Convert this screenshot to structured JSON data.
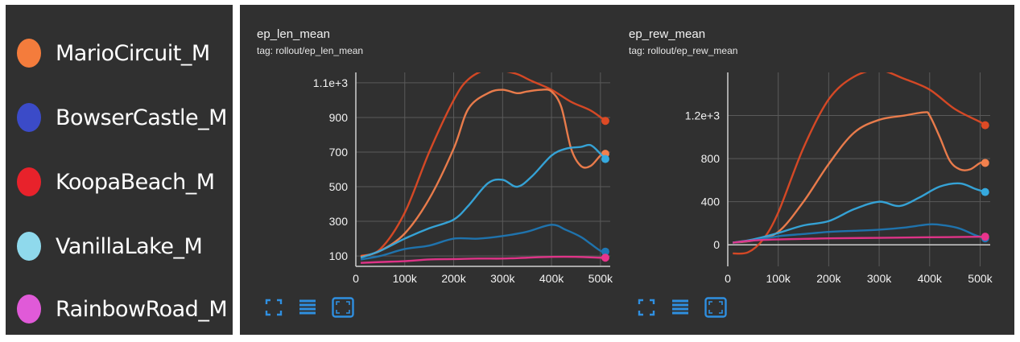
{
  "legend": [
    {
      "label": "MarioCircuit_M",
      "color": "#f47c3c"
    },
    {
      "label": "BowserCastle_M",
      "color": "#3b4bc8"
    },
    {
      "label": "KoopaBeach_M",
      "color": "#e8222b"
    },
    {
      "label": "VanillaLake_M",
      "color": "#8fd9ec"
    },
    {
      "label": "RainbowRoad_M",
      "color": "#e05ad8"
    }
  ],
  "controls": {
    "fullscreen_icon": "fullscreen-icon",
    "list_icon": "list-icon",
    "fit_icon": "fit-domain-icon"
  },
  "chart_data": [
    {
      "type": "line",
      "title": "ep_len_mean",
      "subtitle": "tag: rollout/ep_len_mean",
      "xlim": [
        0,
        520000
      ],
      "ylim": [
        40,
        1160
      ],
      "xticks": [
        0,
        100000,
        200000,
        300000,
        400000,
        500000
      ],
      "xtick_labels": [
        "0",
        "100k",
        "200k",
        "300k",
        "400k",
        "500k"
      ],
      "yticks": [
        100,
        300,
        500,
        700,
        900,
        1100
      ],
      "ytick_labels": [
        "100",
        "300",
        "500",
        "700",
        "900",
        "1.1e+3"
      ],
      "grid": true,
      "series": [
        {
          "name": "KoopaBeach_M",
          "color": "#dd4a25",
          "x": [
            10000,
            50000,
            100000,
            150000,
            200000,
            230000,
            270000,
            300000,
            330000,
            360000,
            400000,
            440000,
            480000,
            510000
          ],
          "y": [
            100,
            140,
            350,
            700,
            1000,
            1120,
            1180,
            1170,
            1150,
            1110,
            1060,
            990,
            940,
            880
          ]
        },
        {
          "name": "MarioCircuit_M",
          "color": "#f2804d",
          "x": [
            10000,
            50000,
            100000,
            150000,
            200000,
            230000,
            270000,
            300000,
            330000,
            350000,
            380000,
            400000,
            420000,
            440000,
            460000,
            480000,
            500000,
            510000
          ],
          "y": [
            95,
            130,
            230,
            430,
            720,
            950,
            1040,
            1060,
            1040,
            1050,
            1060,
            1050,
            960,
            720,
            620,
            620,
            680,
            690
          ]
        },
        {
          "name": "VanillaLake_M",
          "color": "#36a9de",
          "x": [
            10000,
            50000,
            100000,
            150000,
            200000,
            230000,
            270000,
            300000,
            330000,
            360000,
            400000,
            430000,
            460000,
            480000,
            500000,
            510000
          ],
          "y": [
            90,
            130,
            200,
            260,
            310,
            390,
            520,
            540,
            500,
            560,
            680,
            720,
            730,
            740,
            690,
            660
          ]
        },
        {
          "name": "BowserCastle_M",
          "color": "#1f77b4",
          "x": [
            10000,
            50000,
            100000,
            150000,
            200000,
            250000,
            300000,
            350000,
            400000,
            430000,
            460000,
            480000,
            500000,
            510000
          ],
          "y": [
            80,
            100,
            140,
            160,
            200,
            200,
            215,
            240,
            280,
            250,
            210,
            170,
            130,
            125
          ]
        },
        {
          "name": "RainbowRoad_M",
          "color": "#e8348c",
          "x": [
            10000,
            50000,
            100000,
            150000,
            200000,
            250000,
            300000,
            350000,
            400000,
            450000,
            500000,
            510000
          ],
          "y": [
            60,
            65,
            70,
            80,
            82,
            85,
            85,
            90,
            95,
            95,
            90,
            90
          ]
        }
      ]
    },
    {
      "type": "line",
      "title": "ep_rew_mean",
      "subtitle": "tag: rollout/ep_rew_mean",
      "xlim": [
        0,
        520000
      ],
      "ylim": [
        -200,
        1600
      ],
      "xticks": [
        0,
        100000,
        200000,
        300000,
        400000,
        500000
      ],
      "xtick_labels": [
        "0",
        "100k",
        "200k",
        "300k",
        "400k",
        "500k"
      ],
      "yticks": [
        0,
        400,
        800,
        1200
      ],
      "ytick_labels": [
        "0",
        "400",
        "800",
        "1.2e+3"
      ],
      "grid": true,
      "series": [
        {
          "name": "KoopaBeach_M",
          "color": "#dd4a25",
          "x": [
            10000,
            40000,
            70000,
            100000,
            150000,
            200000,
            250000,
            300000,
            350000,
            400000,
            450000,
            500000,
            510000
          ],
          "y": [
            -80,
            -70,
            50,
            300,
            900,
            1350,
            1560,
            1620,
            1540,
            1440,
            1260,
            1140,
            1110
          ]
        },
        {
          "name": "MarioCircuit_M",
          "color": "#f2804d",
          "x": [
            10000,
            50000,
            100000,
            150000,
            200000,
            250000,
            300000,
            350000,
            390000,
            400000,
            420000,
            440000,
            460000,
            480000,
            500000,
            510000
          ],
          "y": [
            20,
            40,
            120,
            400,
            750,
            1040,
            1160,
            1200,
            1230,
            1200,
            1000,
            780,
            700,
            700,
            760,
            760
          ]
        },
        {
          "name": "VanillaLake_M",
          "color": "#36a9de",
          "x": [
            10000,
            50000,
            100000,
            150000,
            200000,
            250000,
            300000,
            340000,
            380000,
            420000,
            460000,
            490000,
            510000
          ],
          "y": [
            20,
            50,
            110,
            180,
            220,
            330,
            400,
            360,
            440,
            540,
            570,
            520,
            490
          ]
        },
        {
          "name": "BowserCastle_M",
          "color": "#1f77b4",
          "x": [
            10000,
            50000,
            100000,
            150000,
            200000,
            250000,
            300000,
            350000,
            400000,
            430000,
            460000,
            490000,
            510000
          ],
          "y": [
            20,
            40,
            80,
            100,
            120,
            130,
            140,
            160,
            190,
            180,
            150,
            90,
            60
          ]
        },
        {
          "name": "RainbowRoad_M",
          "color": "#e8348c",
          "x": [
            10000,
            50000,
            100000,
            150000,
            200000,
            300000,
            400000,
            450000,
            500000,
            510000
          ],
          "y": [
            20,
            40,
            50,
            55,
            60,
            65,
            70,
            72,
            75,
            75
          ]
        }
      ]
    }
  ]
}
